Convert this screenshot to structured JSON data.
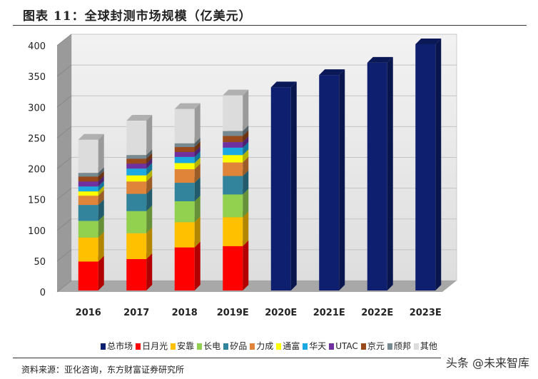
{
  "title": "图表 11：全球封测市场规模（亿美元）",
  "source": "资料来源：亚化咨询，东方财富证券研究所",
  "watermark": "头条 @未来智库",
  "chart_data": {
    "type": "bar",
    "stacked": true,
    "style": "3d",
    "categories": [
      "2016",
      "2017",
      "2018",
      "2019E",
      "2020E",
      "2021E",
      "2022E",
      "2023E"
    ],
    "ylim": [
      0,
      400
    ],
    "yticks": [
      0,
      50,
      100,
      150,
      200,
      250,
      300,
      350,
      400
    ],
    "grid": true,
    "legend_position": "bottom",
    "series": [
      {
        "name": "总市场",
        "color": "#0d1f6e",
        "values": [
          null,
          null,
          null,
          null,
          330,
          350,
          370,
          400
        ]
      },
      {
        "name": "日月光",
        "color": "#ff0000",
        "values": [
          47,
          51,
          70,
          72,
          null,
          null,
          null,
          null
        ]
      },
      {
        "name": "安靠",
        "color": "#ffc000",
        "values": [
          39,
          42,
          41,
          47,
          null,
          null,
          null,
          null
        ]
      },
      {
        "name": "长电",
        "color": "#92d050",
        "values": [
          27,
          36,
          34,
          37,
          null,
          null,
          null,
          null
        ]
      },
      {
        "name": "矽品",
        "color": "#31849b",
        "values": [
          26,
          28,
          30,
          30,
          null,
          null,
          null,
          null
        ]
      },
      {
        "name": "力成",
        "color": "#e0843a",
        "values": [
          15,
          20,
          22,
          22,
          null,
          null,
          null,
          null
        ]
      },
      {
        "name": "通富",
        "color": "#ffff00",
        "values": [
          7,
          10,
          10,
          12,
          null,
          null,
          null,
          null
        ]
      },
      {
        "name": "华天",
        "color": "#1ca8e0",
        "values": [
          8,
          11,
          10,
          12,
          null,
          null,
          null,
          null
        ]
      },
      {
        "name": "UTAC",
        "color": "#7030a0",
        "values": [
          8,
          8,
          8,
          9,
          null,
          null,
          null,
          null
        ]
      },
      {
        "name": "京元",
        "color": "#9a4a1a",
        "values": [
          8,
          8,
          8,
          10,
          null,
          null,
          null,
          null
        ]
      },
      {
        "name": "颀邦",
        "color": "#778a92",
        "values": [
          6,
          6,
          6,
          8,
          null,
          null,
          null,
          null
        ]
      },
      {
        "name": "其他",
        "color": "#dcdcdc",
        "values": [
          54,
          56,
          56,
          58,
          null,
          null,
          null,
          null
        ]
      }
    ]
  }
}
